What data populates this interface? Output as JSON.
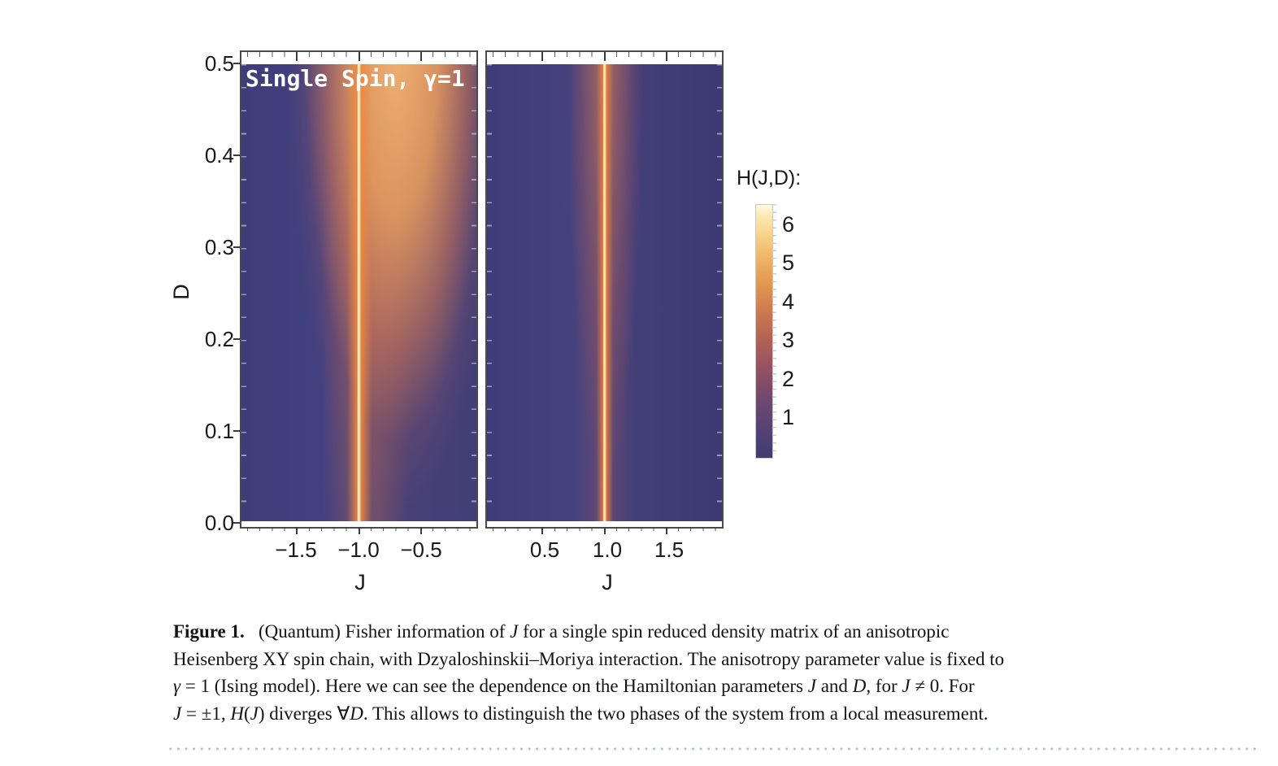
{
  "figure": {
    "panel_title": "Single Spin, γ=1",
    "y_axis": {
      "label": "D",
      "tick_labels": [
        "0.5",
        "0.4",
        "0.3",
        "0.2",
        "0.1",
        "0.0"
      ]
    },
    "x_axis_left": {
      "label": "J",
      "tick_labels": [
        "−1.5",
        "−1.0",
        "−0.5"
      ]
    },
    "x_axis_right": {
      "label": "J",
      "tick_labels": [
        "0.5",
        "1.0",
        "1.5"
      ]
    },
    "legend": {
      "title": "H(J,D):",
      "tick_labels": [
        "6",
        "5",
        "4",
        "3",
        "2",
        "1"
      ]
    }
  },
  "caption": {
    "label": "Figure 1.",
    "lines_html": [
      "<b>Figure 1.</b>&nbsp;&nbsp; (Quantum) Fisher information of <i>J</i> for a single spin reduced density matrix of an anisotropic",
      "Heisenberg XY spin chain, with Dzyaloshinskii–Moriya interaction. The anisotropy parameter value is fixed to",
      "<i>γ</i> = 1 (Ising model). Here we can see the dependence on the Hamiltonian parameters <i>J</i> and <i>D</i>, for <i>J</i> ≠ 0. For",
      "<i>J</i> = ±1, <i>H</i>(<i>J</i>) diverges ∀<i>D</i>. This allows to distinguish the two phases of the system from a local measurement."
    ]
  },
  "chart_data": {
    "type": "heatmap",
    "title": "Single Spin, γ=1",
    "xlabel": "J",
    "ylabel": "D",
    "zlabel": "H(J,D)",
    "panels": [
      {
        "side": "left",
        "x_range": [
          -1.95,
          -0.05
        ],
        "x_ticks": [
          -1.5,
          -1.0,
          -0.5
        ],
        "divergence_line_at_J": -1.0,
        "notes": "bright divergence line at J=-1 for all D; broad high-value orange plume for -1<J<-0.3 growing wider and brighter toward D=0.5"
      },
      {
        "side": "right",
        "x_range": [
          0.05,
          1.95
        ],
        "x_ticks": [
          0.5,
          1.0,
          1.5
        ],
        "divergence_line_at_J": 1.0,
        "notes": "narrow bright divergence line at J=+1 for all D over dark indigo background"
      }
    ],
    "y_range": [
      0.0,
      0.5
    ],
    "y_ticks": [
      0.0,
      0.1,
      0.2,
      0.3,
      0.4,
      0.5
    ],
    "colorbar": {
      "title": "H(J,D):",
      "range": [
        0,
        6.5
      ],
      "ticks": [
        1,
        2,
        3,
        4,
        5,
        6
      ],
      "colormap_stops": [
        "#403d70",
        "#7f4b6a",
        "#b56455",
        "#e0954f",
        "#f8d288",
        "#fffbe0"
      ]
    },
    "grid": false,
    "legend_position": "right"
  },
  "colors": {
    "field_base": "#403f7a",
    "divergence_line_core": "#ffedbe",
    "divergence_line_glow": "#e8843f",
    "frame": "#4a4a4a",
    "dotted_rule": "#b6c1cb",
    "text": "#1a1a1a"
  }
}
